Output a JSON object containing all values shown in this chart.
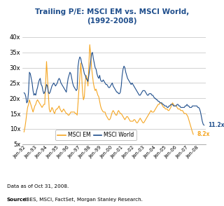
{
  "title": "Trailing P/E: MSCI EM vs. MSCI World,\n(1992-2008)",
  "source_bold": "Source:",
  "source_normal": " IBES, MSCI, FactSet, Morgan Stanley Research.\nData as of Oct 31, 2008.",
  "ylim": [
    5,
    42
  ],
  "yticks": [
    5,
    10,
    15,
    20,
    25,
    30,
    35,
    40
  ],
  "color_em": "#F5A623",
  "color_world": "#1F4E8C",
  "legend_em": "MSCI EM",
  "legend_world": "MSCI World",
  "end_label_world": "11.2x",
  "end_label_em": "8.2x",
  "background_color": "#ffffff",
  "grid_color": "#c0c0c0",
  "xtick_labels": [
    "Jan-92",
    "Jan-93",
    "Jan-94",
    "Jan-95",
    "Jan-96",
    "Jan-97",
    "Jan-98",
    "Jan-99",
    "Jan-00",
    "Jan-01",
    "Jan-02",
    "Jan-03",
    "Jan-04",
    "Jan-05",
    "Jan-06",
    "Jan-07",
    "Jan-08"
  ],
  "msci_world": [
    21.8,
    21.5,
    20.5,
    18.5,
    19.0,
    22.0,
    28.5,
    28.0,
    26.5,
    25.0,
    22.5,
    21.0,
    21.5,
    21.0,
    22.5,
    23.5,
    25.0,
    26.0,
    26.5,
    24.5,
    24.0,
    22.5,
    21.5,
    22.0,
    23.0,
    24.5,
    24.0,
    22.0,
    21.5,
    22.0,
    23.0,
    24.0,
    24.5,
    25.0,
    24.5,
    24.0,
    24.5,
    25.0,
    26.0,
    26.5,
    26.0,
    25.0,
    24.5,
    24.0,
    23.5,
    23.0,
    22.5,
    22.0,
    24.5,
    26.5,
    27.5,
    28.5,
    28.0,
    26.5,
    25.0,
    24.0,
    23.5,
    23.0,
    22.5,
    23.0,
    30.5,
    32.5,
    33.5,
    33.0,
    31.5,
    30.5,
    29.5,
    28.0,
    27.5,
    26.5,
    26.0,
    25.5,
    27.5,
    29.5,
    32.0,
    34.5,
    35.0,
    33.0,
    31.5,
    30.0,
    29.5,
    28.0,
    27.0,
    26.5,
    27.5,
    26.0,
    25.5,
    25.5,
    26.0,
    25.5,
    25.0,
    24.5,
    24.5,
    24.0,
    23.5,
    23.5,
    24.0,
    24.5,
    25.0,
    24.0,
    23.5,
    23.0,
    22.5,
    22.0,
    22.0,
    21.5,
    21.5,
    22.0,
    24.0,
    27.5,
    29.5,
    30.5,
    30.0,
    28.5,
    27.5,
    26.5,
    26.0,
    25.5,
    25.0,
    24.5,
    25.0,
    24.5,
    24.0,
    23.5,
    23.0,
    22.5,
    22.0,
    21.5,
    21.0,
    21.0,
    21.5,
    22.0,
    22.5,
    22.5,
    22.5,
    22.0,
    21.5,
    21.0,
    21.0,
    21.5,
    21.5,
    21.5,
    21.0,
    21.0,
    20.5,
    20.0,
    20.0,
    19.5,
    19.5,
    19.0,
    19.0,
    18.5,
    18.5,
    18.5,
    18.0,
    18.0,
    17.5,
    17.5,
    17.5,
    17.0,
    17.0,
    17.5,
    17.5,
    18.0,
    18.0,
    18.0,
    17.5,
    17.5,
    17.5,
    17.5,
    18.0,
    18.0,
    17.5,
    17.5,
    17.0,
    17.0,
    17.0,
    17.0,
    17.0,
    17.5,
    17.5,
    18.0,
    17.5,
    17.5,
    17.0,
    17.0,
    17.0,
    17.5,
    17.5,
    17.5,
    17.5,
    17.5,
    17.5,
    17.0,
    17.0,
    16.5,
    15.5,
    14.0,
    12.5,
    11.5,
    11.2
  ],
  "msci_em": [
    9.0,
    10.5,
    12.5,
    15.0,
    17.0,
    18.0,
    19.5,
    18.5,
    17.5,
    16.5,
    15.5,
    16.5,
    17.5,
    18.0,
    19.0,
    19.5,
    19.0,
    18.5,
    18.0,
    17.5,
    17.0,
    17.5,
    18.0,
    18.0,
    25.0,
    32.0,
    27.0,
    21.5,
    16.5,
    15.5,
    16.0,
    17.0,
    16.5,
    15.5,
    15.0,
    16.0,
    16.5,
    16.5,
    17.0,
    17.5,
    16.5,
    16.0,
    15.5,
    16.0,
    16.5,
    16.0,
    15.5,
    15.0,
    15.0,
    14.5,
    14.5,
    15.0,
    15.5,
    15.5,
    15.5,
    15.5,
    15.5,
    15.0,
    15.0,
    14.5,
    18.5,
    23.0,
    27.0,
    31.5,
    27.5,
    22.0,
    19.5,
    20.5,
    25.5,
    27.5,
    26.5,
    24.0,
    31.0,
    37.5,
    34.5,
    30.0,
    27.5,
    25.0,
    23.5,
    22.5,
    23.0,
    22.0,
    21.0,
    20.5,
    19.0,
    17.5,
    16.5,
    16.0,
    15.5,
    15.5,
    15.5,
    14.5,
    14.0,
    13.5,
    13.0,
    13.0,
    13.5,
    14.5,
    15.5,
    16.0,
    15.5,
    15.0,
    14.5,
    14.5,
    15.5,
    16.0,
    15.5,
    15.0,
    15.0,
    14.5,
    14.0,
    13.5,
    13.0,
    13.5,
    14.0,
    14.0,
    13.5,
    13.0,
    12.5,
    12.5,
    12.5,
    12.5,
    13.0,
    13.0,
    12.5,
    12.0,
    12.0,
    12.5,
    13.0,
    13.5,
    13.0,
    12.5,
    12.0,
    12.0,
    12.5,
    13.0,
    13.5,
    14.0,
    14.5,
    15.0,
    15.5,
    16.0,
    15.5,
    15.5,
    15.5,
    16.0,
    16.5,
    17.0,
    17.5,
    18.0,
    18.0,
    18.5,
    18.5,
    18.0,
    17.5,
    17.0,
    17.0,
    16.5,
    16.5,
    16.5,
    16.0,
    16.0,
    16.5,
    17.0,
    18.0,
    18.5,
    18.0,
    17.5,
    17.5,
    17.5,
    17.0,
    16.5,
    16.5,
    16.5,
    16.0,
    16.0,
    16.0,
    15.5,
    15.0,
    15.0,
    15.0,
    14.5,
    14.0,
    13.0,
    12.0,
    11.0,
    10.0,
    9.0,
    8.2
  ]
}
